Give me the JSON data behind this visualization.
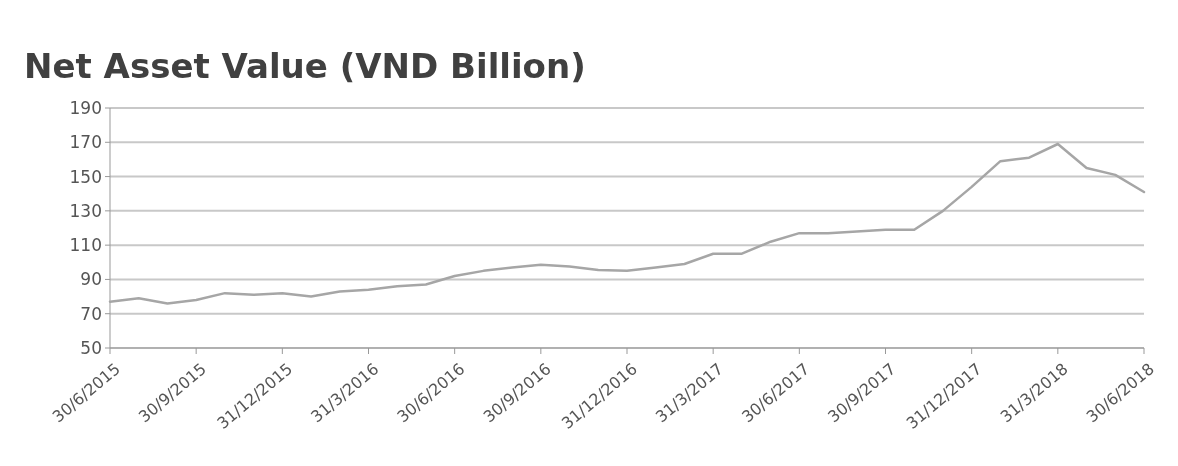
{
  "chart_data": {
    "type": "line",
    "title": "Net Asset Value (VND Billion)",
    "categories": [
      "30/6/2015",
      null,
      null,
      "30/9/2015",
      null,
      null,
      "31/12/2015",
      null,
      null,
      "31/3/2016",
      null,
      null,
      "30/6/2016",
      null,
      null,
      "30/9/2016",
      null,
      null,
      "31/12/2016",
      null,
      null,
      "31/3/2017",
      null,
      null,
      "30/6/2017",
      null,
      null,
      "30/9/2017",
      null,
      null,
      "31/12/2017",
      null,
      null,
      "31/3/2018",
      null,
      null,
      "30/6/2018"
    ],
    "series": [
      {
        "color": "#a6a6a6",
        "values": [
          77,
          79,
          76,
          78,
          82,
          81,
          82,
          80,
          83,
          84,
          86,
          87,
          92,
          95,
          97,
          98.5,
          97.5,
          95.5,
          95,
          97,
          99,
          105,
          105,
          112,
          117,
          117,
          118,
          119,
          119,
          130,
          144,
          159,
          161,
          169,
          155,
          151,
          141
        ]
      }
    ],
    "ylim": [
      50,
      190
    ],
    "yticks": [
      50,
      70,
      90,
      110,
      130,
      150,
      170,
      190
    ],
    "grid": "y"
  }
}
